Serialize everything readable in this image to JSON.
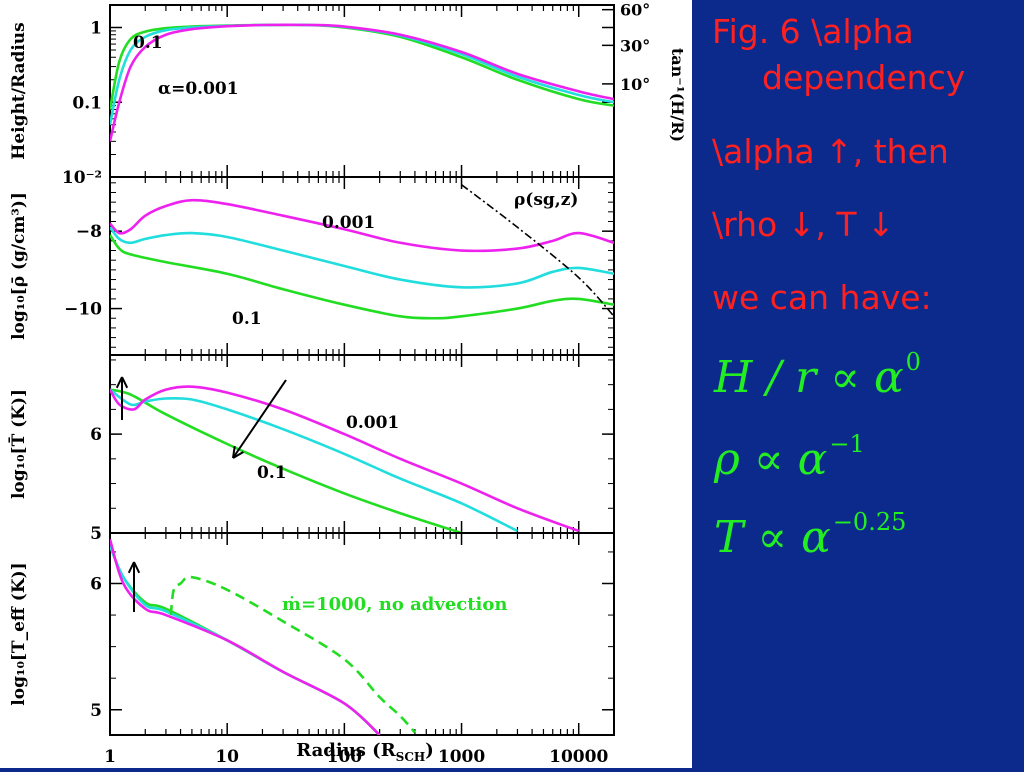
{
  "side": {
    "caption_line1": "Fig. 6 \\alpha",
    "caption_line2": "dependency",
    "line3": "\\alpha ↑, then",
    "line4": "\\rho ↓, T ↓",
    "line5": "we can have:",
    "eq1_base": "H / r ∝ α",
    "eq1_exp": "0",
    "eq2_base": "ρ ∝ α",
    "eq2_exp": "−1",
    "eq3_base": "T ∝ α",
    "eq3_exp": "−0.25"
  },
  "colors": {
    "alpha_0.1": "#22dd22",
    "alpha_0.01": "#22dddd",
    "alpha_0.001": "#ee22ee",
    "side_bg": "#0b2a8c",
    "side_text": "#ff2020",
    "side_eq": "#22ee22"
  },
  "chart_data": [
    {
      "type": "line",
      "panel": "height",
      "ylabel": "Height/Radius",
      "ylabel_right": "tan⁻¹(H/R)",
      "yscale": "log",
      "ylim": [
        0.01,
        2
      ],
      "yticks": [
        {
          "v": 1,
          "t": "1"
        },
        {
          "v": 0.1,
          "t": "0.1"
        },
        {
          "v": 0.01,
          "t": "10⁻²"
        }
      ],
      "right_ticks": [
        {
          "v": 1.732,
          "t": "60°"
        },
        {
          "v": 0.577,
          "t": "30°"
        },
        {
          "v": 0.176,
          "t": "10°"
        }
      ],
      "annotations": [
        "0.1",
        "α=0.001"
      ],
      "series": [
        {
          "key": "alpha_0.1",
          "points": [
            [
              1,
              0.08
            ],
            [
              1.2,
              0.35
            ],
            [
              1.5,
              0.7
            ],
            [
              2,
              0.88
            ],
            [
              3,
              0.98
            ],
            [
              5,
              1.03
            ],
            [
              10,
              1.06
            ],
            [
              20,
              1.08
            ],
            [
              50,
              1.08
            ],
            [
              100,
              1.0
            ],
            [
              300,
              0.75
            ],
            [
              1000,
              0.4
            ],
            [
              3000,
              0.2
            ],
            [
              10000,
              0.11
            ],
            [
              20000,
              0.09
            ]
          ]
        },
        {
          "key": "alpha_0.01",
          "points": [
            [
              1,
              0.05
            ],
            [
              1.2,
              0.2
            ],
            [
              1.5,
              0.5
            ],
            [
              2,
              0.75
            ],
            [
              3,
              0.92
            ],
            [
              5,
              1.0
            ],
            [
              10,
              1.05
            ],
            [
              20,
              1.08
            ],
            [
              50,
              1.08
            ],
            [
              100,
              1.02
            ],
            [
              300,
              0.78
            ],
            [
              1000,
              0.44
            ],
            [
              3000,
              0.22
            ],
            [
              10000,
              0.125
            ],
            [
              20000,
              0.1
            ]
          ]
        },
        {
          "key": "alpha_0.001",
          "points": [
            [
              1,
              0.03
            ],
            [
              1.2,
              0.1
            ],
            [
              1.5,
              0.3
            ],
            [
              2,
              0.55
            ],
            [
              3,
              0.8
            ],
            [
              5,
              0.95
            ],
            [
              10,
              1.04
            ],
            [
              20,
              1.08
            ],
            [
              50,
              1.08
            ],
            [
              100,
              1.03
            ],
            [
              300,
              0.8
            ],
            [
              1000,
              0.47
            ],
            [
              3000,
              0.24
            ],
            [
              10000,
              0.14
            ],
            [
              20000,
              0.11
            ]
          ]
        }
      ]
    },
    {
      "type": "line",
      "panel": "density",
      "ylabel": "log₁₀[ρ̄ (g/cm³)]",
      "ylim": [
        -11.2,
        -6.6
      ],
      "yticks": [
        {
          "v": -8,
          "t": "−8"
        },
        {
          "v": -10,
          "t": "−10"
        }
      ],
      "annotations": [
        "0.001",
        "0.1",
        "ρ(sg,z)"
      ],
      "series": [
        {
          "key": "alpha_0.001",
          "points": [
            [
              1,
              -7.8
            ],
            [
              1.2,
              -8.05
            ],
            [
              1.5,
              -7.95
            ],
            [
              2,
              -7.6
            ],
            [
              3,
              -7.35
            ],
            [
              5,
              -7.2
            ],
            [
              10,
              -7.3
            ],
            [
              30,
              -7.6
            ],
            [
              100,
              -7.95
            ],
            [
              300,
              -8.3
            ],
            [
              1000,
              -8.5
            ],
            [
              3000,
              -8.45
            ],
            [
              6000,
              -8.25
            ],
            [
              10000,
              -8.05
            ],
            [
              20000,
              -8.3
            ]
          ]
        },
        {
          "key": "alpha_0.01",
          "points": [
            [
              1,
              -7.9
            ],
            [
              1.2,
              -8.2
            ],
            [
              1.5,
              -8.3
            ],
            [
              2,
              -8.2
            ],
            [
              3,
              -8.1
            ],
            [
              5,
              -8.05
            ],
            [
              10,
              -8.15
            ],
            [
              30,
              -8.5
            ],
            [
              100,
              -8.9
            ],
            [
              300,
              -9.25
            ],
            [
              1000,
              -9.45
            ],
            [
              3000,
              -9.35
            ],
            [
              6000,
              -9.05
            ],
            [
              10000,
              -8.95
            ],
            [
              20000,
              -9.1
            ]
          ]
        },
        {
          "key": "alpha_0.1",
          "points": [
            [
              1,
              -8.1
            ],
            [
              1.2,
              -8.45
            ],
            [
              1.5,
              -8.6
            ],
            [
              3,
              -8.8
            ],
            [
              10,
              -9.1
            ],
            [
              30,
              -9.5
            ],
            [
              100,
              -9.9
            ],
            [
              300,
              -10.2
            ],
            [
              600,
              -10.25
            ],
            [
              1000,
              -10.2
            ],
            [
              3000,
              -10.0
            ],
            [
              6000,
              -9.8
            ],
            [
              10000,
              -9.75
            ],
            [
              20000,
              -9.9
            ]
          ]
        },
        {
          "key": "rho_sg_z",
          "dashed": true,
          "points": [
            [
              1000,
              -6.8
            ],
            [
              3000,
              -7.9
            ],
            [
              10000,
              -9.2
            ],
            [
              20000,
              -10.2
            ]
          ]
        }
      ]
    },
    {
      "type": "line",
      "panel": "temperature",
      "ylabel": "log₁₀[T̄ (K)]",
      "ylim": [
        5.0,
        6.8
      ],
      "yticks": [
        {
          "v": 6,
          "t": "6"
        },
        {
          "v": 5,
          "t": "5"
        }
      ],
      "annotations": [
        "0.001",
        "0.1"
      ],
      "series": [
        {
          "key": "alpha_0.1",
          "points": [
            [
              1,
              6.45
            ],
            [
              1.5,
              6.4
            ],
            [
              3,
              6.2
            ],
            [
              10,
              5.9
            ],
            [
              30,
              5.65
            ],
            [
              100,
              5.4
            ],
            [
              300,
              5.2
            ],
            [
              1000,
              5.0
            ]
          ]
        },
        {
          "key": "alpha_0.01",
          "points": [
            [
              1,
              6.45
            ],
            [
              1.5,
              6.3
            ],
            [
              2,
              6.33
            ],
            [
              3,
              6.36
            ],
            [
              5,
              6.35
            ],
            [
              10,
              6.25
            ],
            [
              30,
              6.05
            ],
            [
              100,
              5.8
            ],
            [
              300,
              5.55
            ],
            [
              1000,
              5.3
            ],
            [
              3000,
              5.02
            ]
          ]
        },
        {
          "key": "alpha_0.001",
          "points": [
            [
              1,
              6.45
            ],
            [
              1.2,
              6.3
            ],
            [
              1.6,
              6.25
            ],
            [
              2,
              6.35
            ],
            [
              3,
              6.45
            ],
            [
              5,
              6.48
            ],
            [
              10,
              6.42
            ],
            [
              30,
              6.25
            ],
            [
              100,
              6.0
            ],
            [
              300,
              5.75
            ],
            [
              1000,
              5.5
            ],
            [
              3000,
              5.25
            ],
            [
              10000,
              5.02
            ]
          ]
        }
      ]
    },
    {
      "type": "line",
      "panel": "effective_temperature",
      "ylabel": "log₁₀[T_eff (K)]",
      "xlabel": "Radius (R_SCH)",
      "ylim": [
        4.8,
        6.4
      ],
      "yticks": [
        {
          "v": 6,
          "t": "6"
        },
        {
          "v": 5,
          "t": "5"
        }
      ],
      "xticks": [
        {
          "v": 1,
          "t": "1"
        },
        {
          "v": 10,
          "t": "10"
        },
        {
          "v": 100,
          "t": "100"
        },
        {
          "v": 1000,
          "t": "1000"
        },
        {
          "v": 10000,
          "t": "10000"
        }
      ],
      "annotations": [
        "ṁ=1000, no advection"
      ],
      "series": [
        {
          "key": "alpha_0.1",
          "points": [
            [
              1,
              6.3
            ],
            [
              1.3,
              6.05
            ],
            [
              2,
              5.85
            ],
            [
              3,
              5.8
            ],
            [
              10,
              5.55
            ],
            [
              30,
              5.3
            ],
            [
              100,
              5.05
            ],
            [
              200,
              4.8
            ]
          ]
        },
        {
          "key": "alpha_0.01",
          "points": [
            [
              1,
              6.3
            ],
            [
              1.3,
              6.05
            ],
            [
              2,
              5.83
            ],
            [
              3,
              5.78
            ],
            [
              10,
              5.55
            ],
            [
              30,
              5.3
            ],
            [
              100,
              5.05
            ],
            [
              200,
              4.8
            ]
          ]
        },
        {
          "key": "alpha_0.001",
          "points": [
            [
              1,
              6.35
            ],
            [
              1.3,
              6.0
            ],
            [
              2,
              5.8
            ],
            [
              3,
              5.75
            ],
            [
              10,
              5.55
            ],
            [
              30,
              5.3
            ],
            [
              100,
              5.05
            ],
            [
              200,
              4.8
            ]
          ]
        },
        {
          "key": "alpha_0.1",
          "dashed": true,
          "points": [
            [
              3.3,
              5.75
            ],
            [
              3.5,
              5.95
            ],
            [
              4,
              6.0
            ],
            [
              5,
              6.05
            ],
            [
              10,
              5.95
            ],
            [
              30,
              5.7
            ],
            [
              100,
              5.4
            ],
            [
              200,
              5.1
            ],
            [
              300,
              4.95
            ],
            [
              400,
              4.82
            ]
          ]
        }
      ]
    }
  ]
}
